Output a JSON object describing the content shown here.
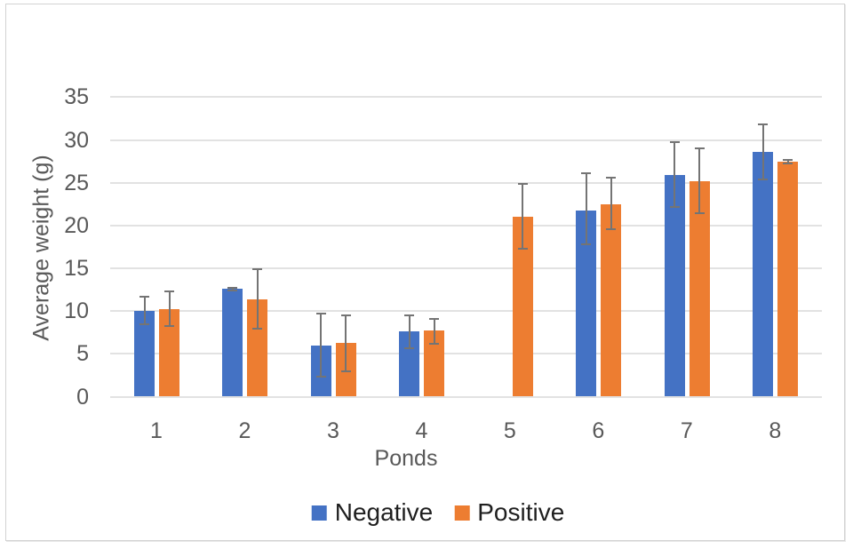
{
  "chart_data": {
    "type": "bar",
    "title": "",
    "xlabel": "Ponds",
    "ylabel": "Average weight (g)",
    "ylim": [
      0,
      35
    ],
    "yticks": [
      0,
      5,
      10,
      15,
      20,
      25,
      30,
      35
    ],
    "categories": [
      "1",
      "2",
      "3",
      "4",
      "5",
      "6",
      "7",
      "8"
    ],
    "grid": true,
    "legend_position": "bottom",
    "series": [
      {
        "name": "Negative",
        "color": "#4472C4",
        "values": [
          10.0,
          12.6,
          6.0,
          7.6,
          null,
          21.8,
          25.9,
          28.6
        ],
        "error_low": [
          8.5,
          12.45,
          2.3,
          5.7,
          null,
          17.8,
          22.2,
          25.4
        ],
        "error_high": [
          11.7,
          12.75,
          9.7,
          9.5,
          null,
          26.1,
          29.8,
          31.8
        ]
      },
      {
        "name": "Positive",
        "color": "#ED7D31",
        "values": [
          10.2,
          11.4,
          6.3,
          7.7,
          21.0,
          22.5,
          25.2,
          27.5
        ],
        "error_low": [
          8.3,
          7.9,
          3.0,
          6.2,
          17.3,
          19.6,
          21.4,
          27.3
        ],
        "error_high": [
          12.3,
          14.9,
          9.5,
          9.1,
          24.9,
          25.6,
          29.0,
          27.7
        ]
      }
    ]
  },
  "colors": {
    "negative_bar": "#4472C4",
    "positive_bar": "#ED7D31",
    "gridline": "#e2e2e2",
    "axis_text": "#595959",
    "error_bar": "#747474",
    "legend_text": "#1f1f1f",
    "frame_border": "#d2d2d2",
    "background": "#ffffff"
  }
}
